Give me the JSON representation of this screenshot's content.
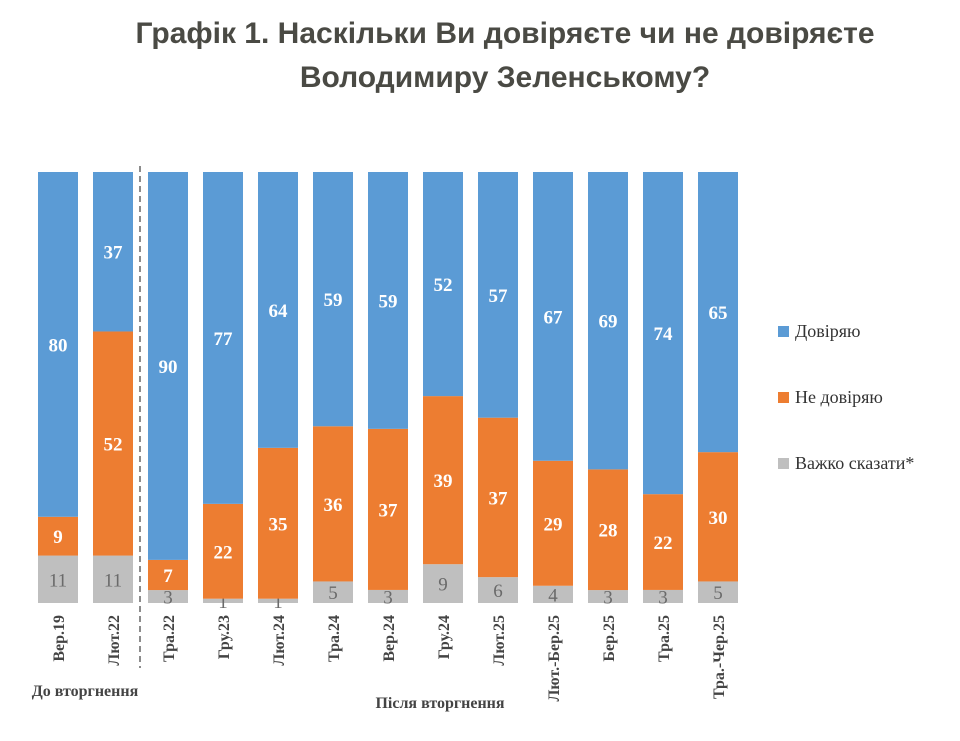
{
  "chart_data": {
    "type": "bar",
    "stacked": true,
    "title_line1": "Графік 1. Наскільки Ви довіряєте чи не довіряєте",
    "title_line2": "Володимиру Зеленському?",
    "categories": [
      "Вер.19",
      "Лют.22",
      "Тра.22",
      "Гру.23",
      "Лют.24",
      "Тра.24",
      "Вер.24",
      "Гру.24",
      "Лют.25",
      "Лют.-Бер.25",
      "Бер.25",
      "Тра.25",
      "Тра.-Чер.25"
    ],
    "series": [
      {
        "name": "Довіряю",
        "color": "#5b9bd5",
        "values": [
          80,
          37,
          90,
          77,
          64,
          59,
          59,
          52,
          57,
          67,
          69,
          74,
          65
        ]
      },
      {
        "name": "Не довіряю",
        "color": "#ed7d31",
        "values": [
          9,
          52,
          7,
          22,
          35,
          36,
          37,
          39,
          37,
          29,
          28,
          22,
          30
        ]
      },
      {
        "name": "Важко сказати*",
        "color": "#bfbfbf",
        "values": [
          11,
          11,
          3,
          1,
          1,
          5,
          3,
          9,
          6,
          4,
          3,
          3,
          5
        ]
      }
    ],
    "groups": [
      {
        "label": "До вторгнення",
        "categories": [
          "Вер.19",
          "Лют.22"
        ]
      },
      {
        "label": "Після вторгнення",
        "categories": [
          "Тра.22",
          "Гру.23",
          "Лют.24",
          "Тра.24",
          "Вер.24",
          "Гру.24",
          "Лют.25",
          "Лют.-Бер.25",
          "Бер.25",
          "Тра.25",
          "Тра.-Чер.25"
        ]
      }
    ],
    "ylim": [
      0,
      100
    ],
    "legend_position": "right",
    "grid": false
  }
}
